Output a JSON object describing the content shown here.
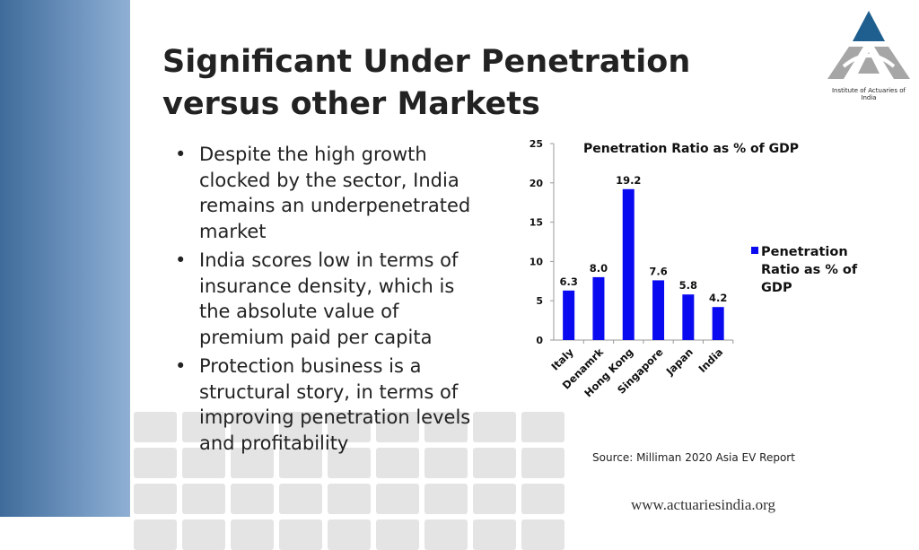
{
  "slide": {
    "title": "Significant Under Penetration versus other Markets",
    "bullets": [
      "Despite the high growth clocked by the sector, India remains an underpenetrated market",
      "India scores low in terms of insurance density, which is the absolute value of premium paid per capita",
      "Protection business is a structural story, in terms of improving penetration levels and profitability"
    ],
    "bullet_glyph": "•",
    "source": "Source: Milliman 2020 Asia EV Report",
    "website": "www.actuariesindia.org",
    "logo_text": "Institute of Actuaries of India",
    "colors": {
      "accent_strip": "#4f7aa8",
      "bar": "#0a0af0",
      "logo_blue": "#1f5f8f",
      "logo_gray": "#a6a6a6"
    }
  },
  "chart_data": {
    "type": "bar",
    "title": "Penetration Ratio as % of GDP",
    "categories": [
      "Italy",
      "Denamrk",
      "Hong Kong",
      "Singapore",
      "Japan",
      "India"
    ],
    "series": [
      {
        "name": "Penetration Ratio as % of GDP",
        "values": [
          6.3,
          8.0,
          19.2,
          7.6,
          5.8,
          4.2
        ]
      }
    ],
    "data_labels": [
      "6.3",
      "8.0",
      "19.2",
      "7.6",
      "5.8",
      "4.2"
    ],
    "ylim": [
      0,
      25
    ],
    "yticks": [
      0,
      5,
      10,
      15,
      20,
      25
    ],
    "grid": false,
    "legend": "right"
  }
}
